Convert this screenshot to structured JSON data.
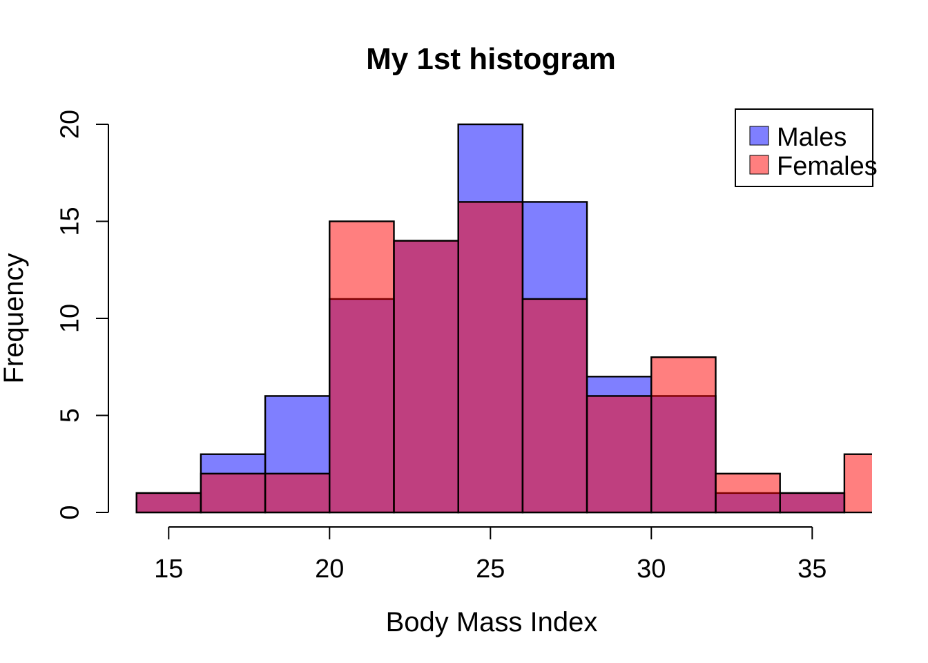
{
  "page": {
    "background": "#FFFFFF"
  },
  "chart_data": {
    "type": "histogram",
    "title": "My 1st histogram",
    "xlabel": "Body Mass Index",
    "ylabel": "Frequency",
    "bin_edges": [
      14,
      16,
      18,
      20,
      22,
      24,
      26,
      28,
      30,
      32,
      34,
      36,
      38
    ],
    "series": [
      {
        "name": "Males",
        "color": "rgba(0,0,255,0.5)",
        "counts": [
          1,
          3,
          6,
          11,
          14,
          20,
          16,
          7,
          6,
          1,
          1,
          0
        ]
      },
      {
        "name": "Females",
        "color": "rgba(255,0,0,0.5)",
        "counts": [
          1,
          2,
          2,
          15,
          14,
          16,
          11,
          6,
          8,
          2,
          1,
          3
        ]
      }
    ],
    "x_ticks": [
      15,
      20,
      25,
      30,
      35
    ],
    "y_ticks": [
      0,
      5,
      10,
      15,
      20
    ],
    "xlim": [
      13.05,
      36.95
    ],
    "ylim": [
      0,
      20
    ],
    "grid": false,
    "colors": {
      "males_rendered": "#8080FF",
      "females_rendered": "#FF8080",
      "overlap_rendered": "#BF4080",
      "bar_border": "#000000",
      "axis": "#000000",
      "background": "#FFFFFF"
    },
    "legend": {
      "position": "topright",
      "entries": [
        {
          "label": "Males",
          "color": "rgba(0,0,255,0.5)"
        },
        {
          "label": "Females",
          "color": "rgba(255,0,0,0.5)"
        }
      ]
    }
  }
}
